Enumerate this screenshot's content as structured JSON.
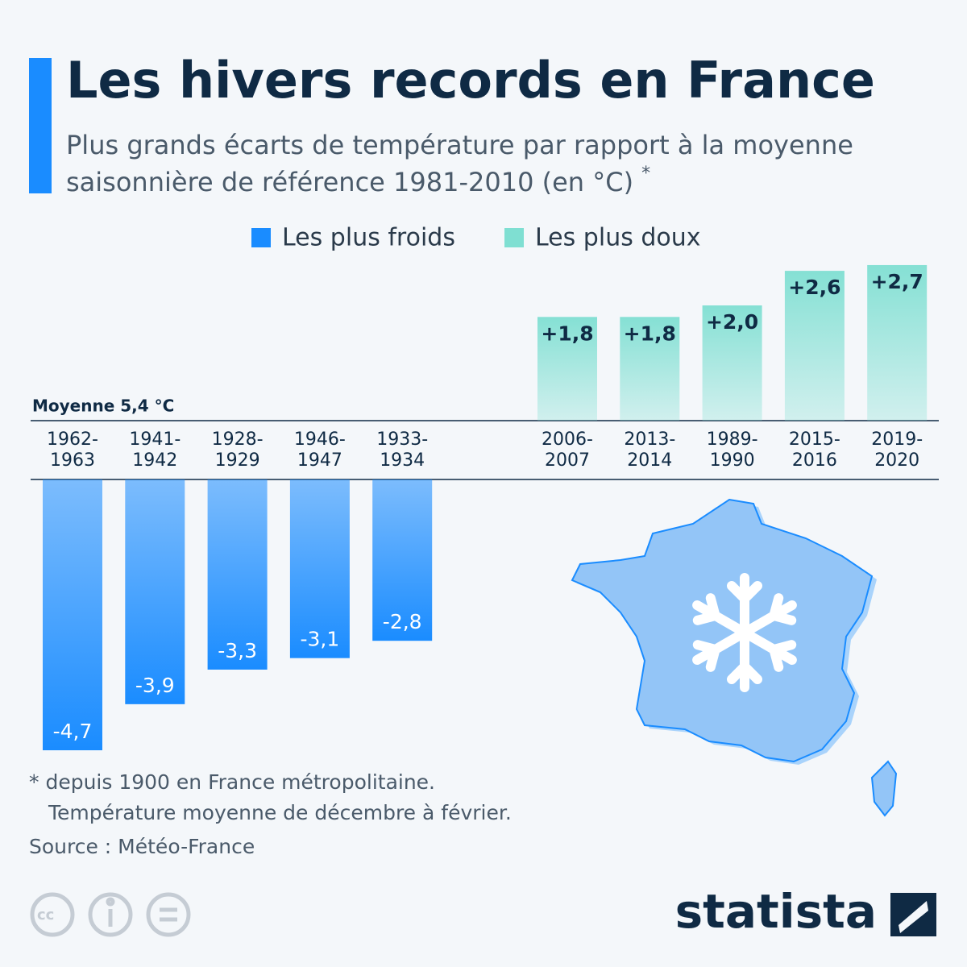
{
  "chart_data": {
    "type": "bar",
    "title": "Les hivers records en France",
    "subtitle": [
      "Plus grands écarts de température par rapport à la moyenne",
      "saisonnière de référence 1981-2010 (en °C)"
    ],
    "subtitle_note": "*",
    "baseline_label": "Moyenne 5,4 °C",
    "series": [
      {
        "name": "Les plus froids",
        "color": "#1a8cff",
        "categories": [
          "1962-1963",
          "1941-1942",
          "1928-1929",
          "1946-1947",
          "1933-1934"
        ],
        "values": [
          -4.7,
          -3.9,
          -3.3,
          -3.1,
          -2.8
        ],
        "value_labels": [
          "-4,7",
          "-3,9",
          "-3,3",
          "-3,1",
          "-2,8"
        ]
      },
      {
        "name": "Les plus doux",
        "color": "#7fdfd2",
        "categories": [
          "2006-2007",
          "2013-2014",
          "1989-1990",
          "2015-2016",
          "2019-2020"
        ],
        "values": [
          1.8,
          1.8,
          2.0,
          2.6,
          2.7
        ],
        "value_labels": [
          "+1,8",
          "+1,8",
          "+2,0",
          "+2,6",
          "+2,7"
        ]
      }
    ],
    "footnotes": [
      "* depuis 1900 en France métropolitaine.",
      "Température moyenne de décembre à février."
    ],
    "source": "Source : Météo-France",
    "brand": "statista"
  }
}
